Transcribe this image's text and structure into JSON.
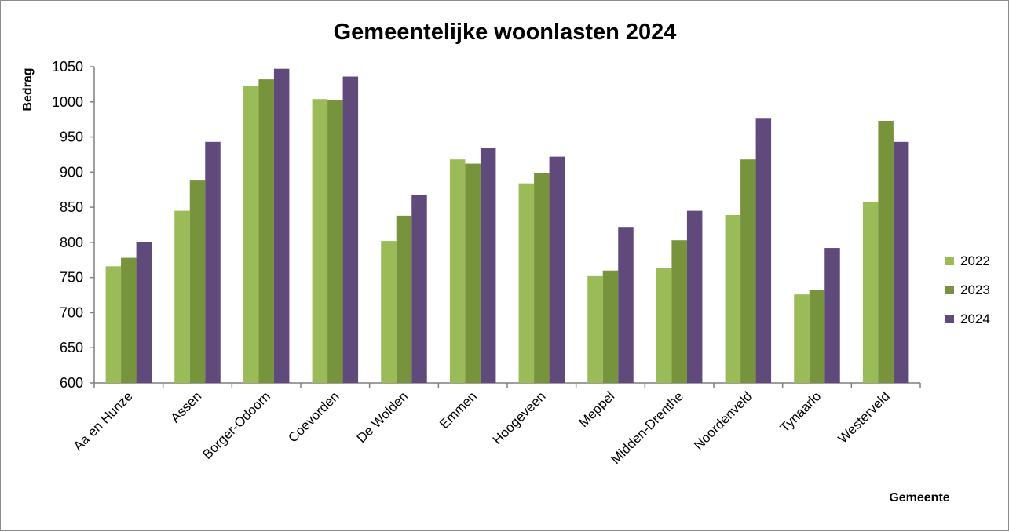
{
  "chart_data": {
    "type": "bar",
    "title": "Gemeentelijke woonlasten 2024",
    "ylabel": "Bedrag",
    "xlabel": "Gemeente",
    "ylim": [
      600,
      1050
    ],
    "yticks": [
      600,
      650,
      700,
      750,
      800,
      850,
      900,
      950,
      1000,
      1050
    ],
    "grid": false,
    "legend_position": "right",
    "categories": [
      "Aa en Hunze",
      "Assen",
      "Borger-Odoorn",
      "Coevorden",
      "De Wolden",
      "Emmen",
      "Hoogeveen",
      "Meppel",
      "Midden-Drenthe",
      "Noordenveld",
      "Tynaarlo",
      "Westerveld"
    ],
    "series": [
      {
        "name": "2022",
        "color": "#9bbb59",
        "values": [
          766,
          845,
          1023,
          1004,
          802,
          918,
          884,
          752,
          763,
          839,
          726,
          858
        ]
      },
      {
        "name": "2023",
        "color": "#77933c",
        "values": [
          778,
          888,
          1032,
          1002,
          838,
          912,
          899,
          760,
          803,
          918,
          732,
          973
        ]
      },
      {
        "name": "2024",
        "color": "#604a7b",
        "values": [
          800,
          943,
          1047,
          1036,
          868,
          934,
          922,
          822,
          845,
          976,
          792,
          943
        ]
      }
    ]
  }
}
